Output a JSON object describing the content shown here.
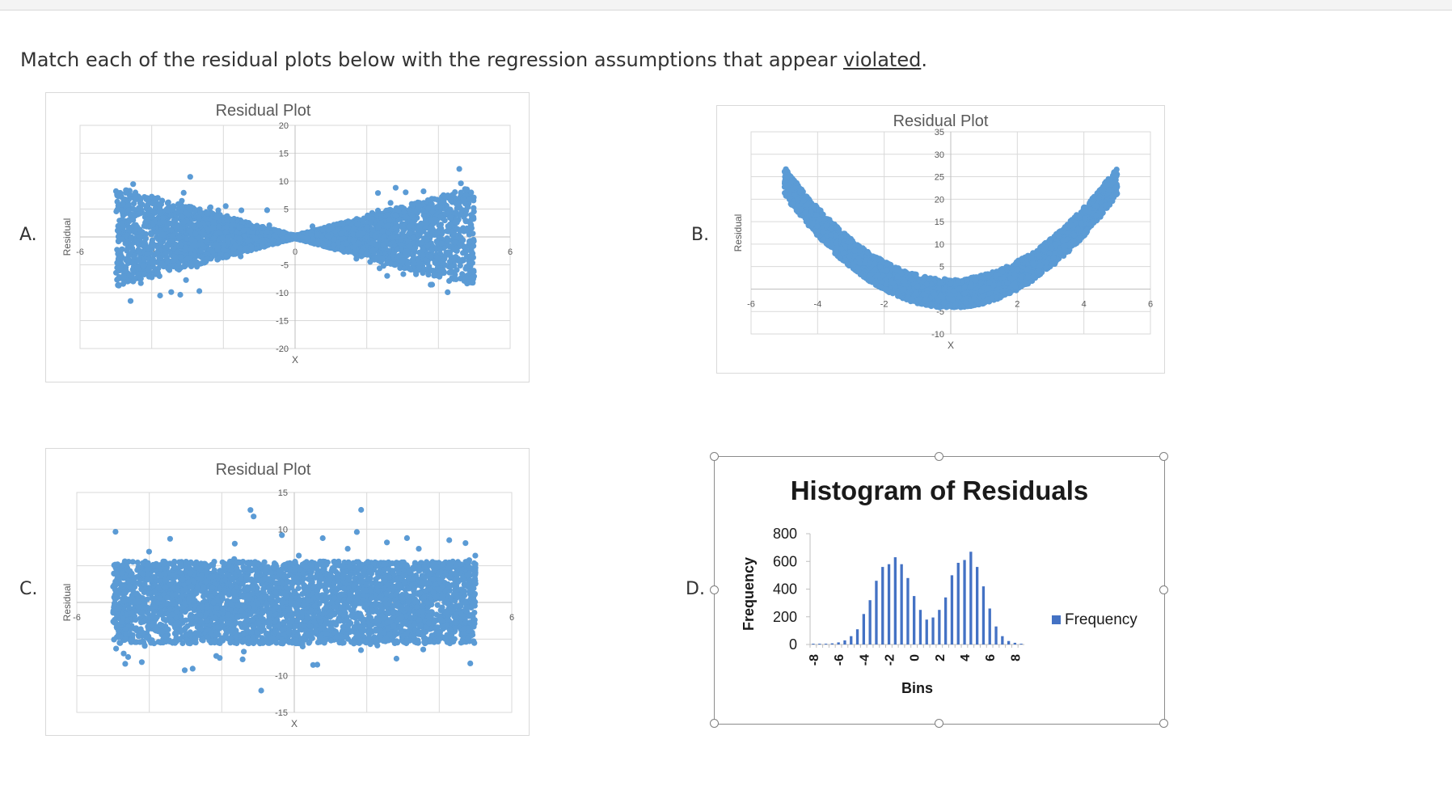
{
  "question": {
    "text_before": "Match each of the residual plots below with the regression assumptions that appear ",
    "underlined": "violated",
    "text_after": "."
  },
  "labels": {
    "a": "A.",
    "b": "B.",
    "c": "C.",
    "d": "D."
  },
  "colors": {
    "points": "#5b9bd5",
    "bars": "#4472c4",
    "grid": "#d9d9d9",
    "axis_text": "#595959"
  },
  "chart_data": [
    {
      "id": "A",
      "type": "scatter",
      "title": "Residual Plot",
      "xlabel": "X",
      "ylabel": "Residual",
      "xlim": [
        -6,
        6
      ],
      "ylim": [
        -20,
        20
      ],
      "x_ticks": [
        "-6",
        "-4",
        "-2",
        "0",
        "2",
        "4",
        "6"
      ],
      "y_ticks": [
        "20",
        "15",
        "10",
        "5",
        "0",
        "-5",
        "-10",
        "-15",
        "-20"
      ],
      "x_range": [
        -5,
        5
      ],
      "pattern": "fan / bow-tie: spread narrows to near 0 at x=0 and widens toward both ends (about ±10 at |x|=5)",
      "grid": true
    },
    {
      "id": "B",
      "type": "scatter",
      "title": "Residual Plot",
      "xlabel": "X",
      "ylabel": "Residual",
      "xlim": [
        -6,
        6
      ],
      "ylim": [
        -10,
        35
      ],
      "x_ticks": [
        "-6",
        "-4",
        "-2",
        "0",
        "2",
        "4",
        "6"
      ],
      "y_ticks": [
        "35",
        "30",
        "25",
        "20",
        "15",
        "10",
        "5",
        "0",
        "-5",
        "-10"
      ],
      "x_range": [
        -5,
        5
      ],
      "pattern": "U-shaped curve: residuals ≈ x^2 - 1 with noise, about 25 at x=±5 and about -1 at x=0",
      "grid": true
    },
    {
      "id": "C",
      "type": "scatter",
      "title": "Residual Plot",
      "xlabel": "X",
      "ylabel": "Residual",
      "xlim": [
        -6,
        6
      ],
      "ylim": [
        -15,
        15
      ],
      "x_ticks": [
        "-6",
        "-4",
        "-2",
        "0",
        "2",
        "4",
        "6"
      ],
      "y_ticks": [
        "15",
        "10",
        "5",
        "0",
        "-5",
        "-10",
        "-15"
      ],
      "x_range": [
        -5,
        5
      ],
      "pattern": "random horizontal band around 0, roughly -6 to 6 with a few points out to ±10",
      "grid": true
    },
    {
      "id": "D",
      "type": "bar",
      "title": "Histogram of Residuals",
      "xlabel": "Bins",
      "ylabel": "Frequency",
      "legend": "Frequency",
      "legend_position": "right",
      "ylim": [
        0,
        800
      ],
      "y_ticks": [
        "800",
        "600",
        "400",
        "200",
        "0"
      ],
      "x_ticks": [
        "-8",
        "-6",
        "-4",
        "-2",
        "0",
        "2",
        "4",
        "6",
        "8"
      ],
      "categories": [
        -8,
        -7.5,
        -7,
        -6.5,
        -6,
        -5.5,
        -5,
        -4.5,
        -4,
        -3.5,
        -3,
        -2.5,
        -2,
        -1.5,
        -1,
        -0.5,
        0,
        0.5,
        1,
        1.5,
        2,
        2.5,
        3,
        3.5,
        4,
        4.5,
        5,
        5.5,
        6,
        6.5,
        7,
        7.5,
        8,
        8.5
      ],
      "values": [
        2,
        3,
        5,
        8,
        15,
        30,
        60,
        110,
        220,
        320,
        460,
        560,
        580,
        630,
        580,
        480,
        350,
        250,
        180,
        195,
        250,
        340,
        500,
        590,
        610,
        670,
        560,
        420,
        260,
        130,
        60,
        25,
        12,
        6
      ]
    }
  ]
}
